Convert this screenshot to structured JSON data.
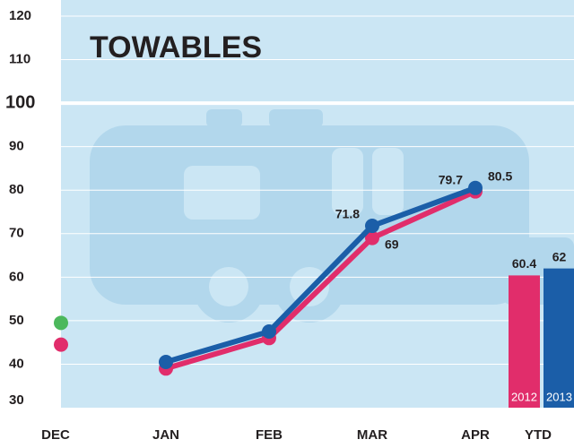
{
  "chart_data": {
    "type": "line",
    "title": "TOWABLES",
    "categories": [
      "DEC",
      "JAN",
      "FEB",
      "MAR",
      "APR",
      "YTD"
    ],
    "series": [
      {
        "name": "2012",
        "color": "#e12d6b",
        "values": [
          null,
          39,
          46,
          69,
          79.7,
          null
        ],
        "show_labels": [
          false,
          false,
          false,
          true,
          true,
          false
        ]
      },
      {
        "name": "2013",
        "color": "#1b5ea8",
        "values": [
          null,
          40.5,
          47.5,
          71.8,
          80.5,
          null
        ],
        "show_labels": [
          false,
          false,
          false,
          true,
          true,
          false
        ]
      }
    ],
    "dec_markers": [
      {
        "value": 44.5,
        "color": "#e12d6b"
      },
      {
        "value": 49.5,
        "color": "#4cb85c"
      }
    ],
    "ytd": [
      60.4,
      62
    ],
    "ylim": [
      30,
      120
    ],
    "yticks": [
      30,
      40,
      50,
      60,
      70,
      80,
      90,
      100,
      110,
      120
    ],
    "emphasized_tick": 100,
    "grid": true
  }
}
